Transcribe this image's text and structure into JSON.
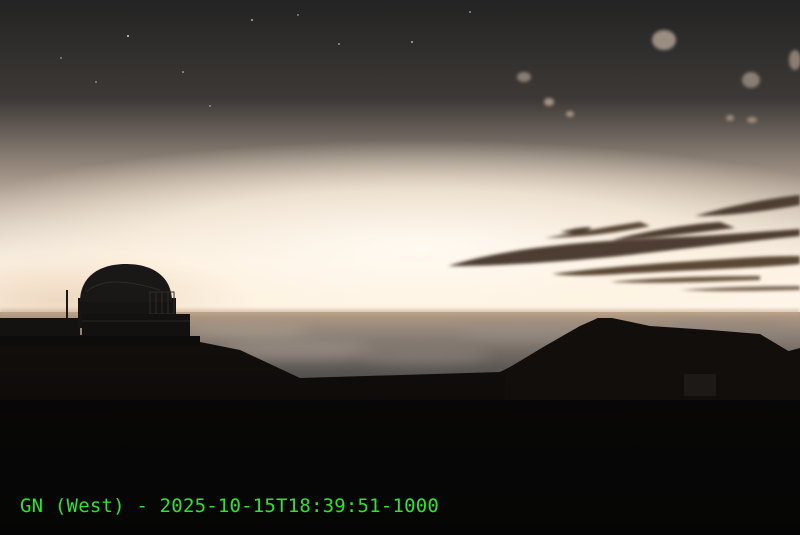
{
  "webcam": {
    "caption": "GN (West) - 2025-10-15T18:39:51-1000",
    "caption_color": "#2fe32f"
  },
  "scene": {
    "sky_top_color": "#242424",
    "horizon_glow_color": "#fff6ea",
    "cloud_sea_color": "#6f6a66",
    "ground_color": "#0c0a09",
    "cloud_streak_color": "#4a3b2e",
    "elements": [
      "sky",
      "horizon-glow",
      "cloud-sea",
      "telescope-dome",
      "cinder-cone",
      "cloud-streaks",
      "stars",
      "foreground-ridge"
    ]
  }
}
